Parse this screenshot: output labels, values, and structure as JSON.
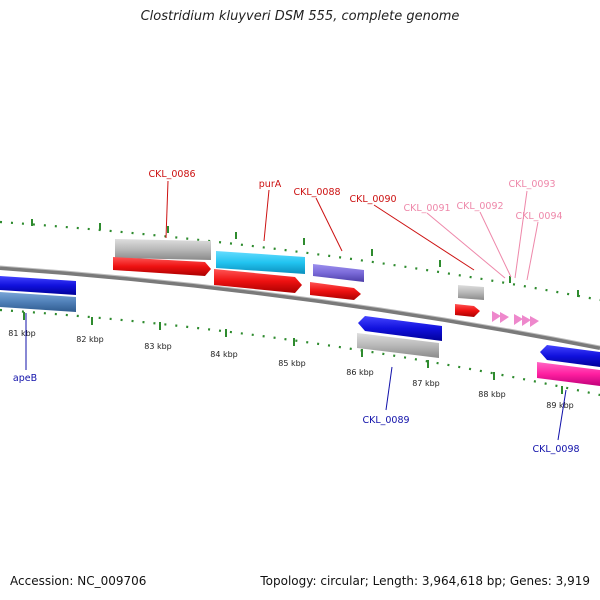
{
  "map": {
    "title": "Clostridium kluyveri DSM 555, complete genome",
    "accession_label": "Accession: NC_009706",
    "summary_label": "Topology: circular; Length: 3,964,618 bp; Genes: 3,919"
  },
  "colors": {
    "backbone": "#7a7a7a",
    "tick": "#2e8b2e",
    "cds_forward": "#ee1111",
    "cds_reverse": "#1111dd",
    "label_forward": "#cc1111",
    "label_pink": "#ee88aa",
    "label_reverse": "#1111aa",
    "gene_grey": "#b8b8b8",
    "gene_cyan": "#22c4f0",
    "gene_purple": "#7a6ad8",
    "gene_steelblue": "#5080b8",
    "gene_magenta": "#ff1fa0"
  },
  "scale": {
    "unit": "kbp",
    "ticks": [
      "81 kbp",
      "82 kbp",
      "83 kbp",
      "84 kbp",
      "85 kbp",
      "86 kbp",
      "87 kbp",
      "88 kbp",
      "89 kbp"
    ]
  },
  "gene_labels": {
    "forward": [
      "CKL_0086",
      "purA",
      "CKL_0088",
      "CKL_0090"
    ],
    "forward_faint": [
      "CKL_0091",
      "CKL_0092",
      "CKL_0093",
      "CKL_0094"
    ],
    "reverse": [
      "apeB",
      "CKL_0089",
      "CKL_0098"
    ]
  }
}
